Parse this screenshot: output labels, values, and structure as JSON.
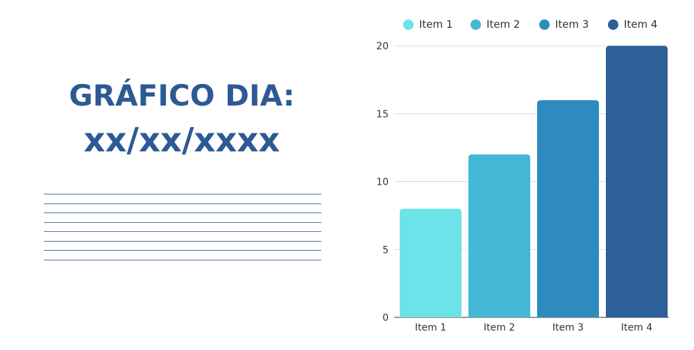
{
  "title": {
    "line1": "GRÁFICO DIA:",
    "line2": "xx/xx/xxxx"
  },
  "colors": {
    "title": "#2d5a94",
    "deco_lines": "#4e73a3",
    "grid": "#d9d9d9",
    "axis": "#333333"
  },
  "chart_data": {
    "type": "bar",
    "categories": [
      "Item 1",
      "Item 2",
      "Item 3",
      "Item 4"
    ],
    "values": [
      8,
      12,
      16,
      20
    ],
    "bar_colors": [
      "#6be3e8",
      "#43b7d6",
      "#2e8bbd",
      "#2d5f98"
    ],
    "legend": [
      {
        "label": "Item 1",
        "color": "#6be3e8"
      },
      {
        "label": "Item 2",
        "color": "#43b7d6"
      },
      {
        "label": "Item 3",
        "color": "#2e8bbd"
      },
      {
        "label": "Item 4",
        "color": "#2d5f98"
      }
    ],
    "legend_position": "top",
    "yticks": [
      0,
      5,
      10,
      15,
      20
    ],
    "ylim": [
      0,
      20
    ],
    "grid": true,
    "title": "",
    "xlabel": "",
    "ylabel": ""
  }
}
